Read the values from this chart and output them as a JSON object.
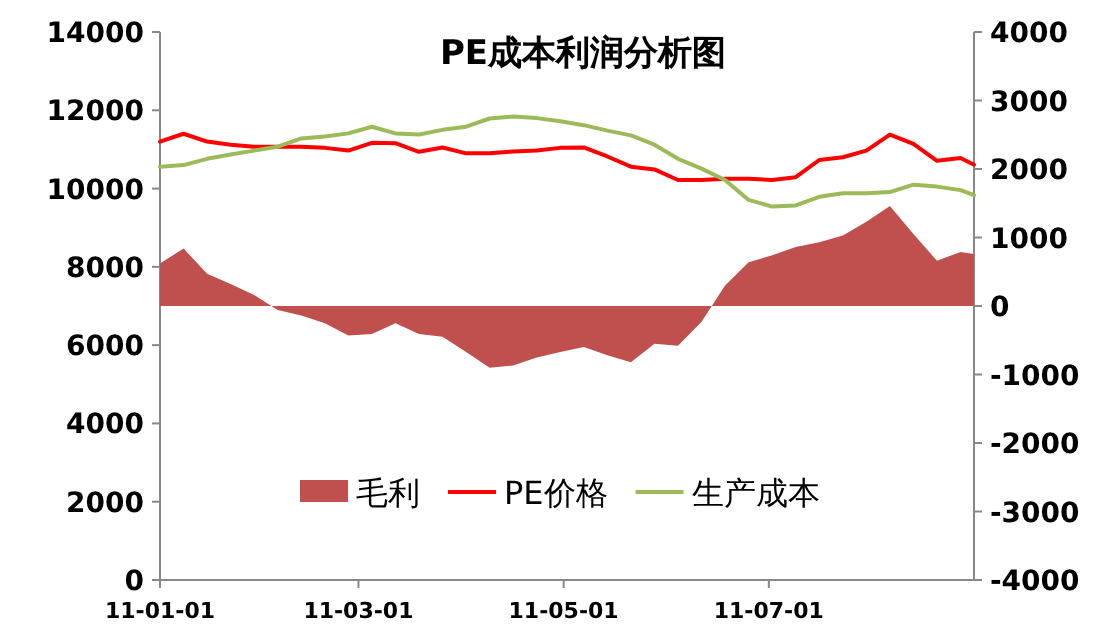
{
  "chart_data": {
    "type": "line",
    "title": "PE成本利润分析图",
    "x": [
      "--01-01",
      "--01-08",
      "--01-15",
      "--01-22",
      "--01-29",
      "--02-05",
      "--02-12",
      "--02-19",
      "--02-26",
      "--03-05",
      "--03-12",
      "--03-19",
      "--03-26",
      "--04-02",
      "--04-09",
      "--04-16",
      "--04-23",
      "--04-30",
      "--05-07",
      "--05-14",
      "--05-21",
      "--05-28",
      "--06-04",
      "--06-11",
      "--06-18",
      "--06-25",
      "--07-02",
      "--07-09",
      "--07-16",
      "--07-23",
      "--07-30",
      "--08-06",
      "--08-13",
      "--08-20",
      "--08-27",
      "--08-31"
    ],
    "series": [
      {
        "name": "毛利",
        "type": "area",
        "axis": "y2",
        "color": "#c0504d",
        "values": [
          620,
          840,
          470,
          320,
          160,
          -60,
          -140,
          -250,
          -430,
          -410,
          -250,
          -410,
          -450,
          -670,
          -900,
          -870,
          -750,
          -670,
          -600,
          -720,
          -820,
          -550,
          -580,
          -230,
          300,
          640,
          740,
          860,
          930,
          1030,
          1230,
          1460,
          1050,
          660,
          790,
          760
        ]
      },
      {
        "name": "PE价格",
        "type": "line",
        "color": "#ff0000",
        "values": [
          11200,
          11400,
          11200,
          11120,
          11070,
          11070,
          11070,
          11040,
          10970,
          11170,
          11160,
          10940,
          11050,
          10900,
          10900,
          10950,
          10970,
          11040,
          11050,
          10820,
          10560,
          10490,
          10220,
          10220,
          10250,
          10250,
          10220,
          10290,
          10730,
          10800,
          10970,
          11380,
          11140,
          10710,
          10780,
          10610
        ]
      },
      {
        "name": "生产成本",
        "type": "line",
        "color": "#9bbb59",
        "values": [
          10560,
          10600,
          10760,
          10870,
          10970,
          11070,
          11280,
          11330,
          11410,
          11580,
          11410,
          11380,
          11500,
          11580,
          11790,
          11840,
          11800,
          11720,
          11620,
          11480,
          11360,
          11120,
          10760,
          10510,
          10220,
          9710,
          9540,
          9570,
          9790,
          9880,
          9880,
          9910,
          10100,
          10050,
          9960,
          9830
        ]
      }
    ],
    "xlim": [
      "--01-01",
      "--08-31"
    ],
    "xticks": [
      {
        "value": "--01-01",
        "label": "11-01-01"
      },
      {
        "value": "--03-01",
        "label": "11-03-01"
      },
      {
        "value": "--05-01",
        "label": "11-05-01"
      },
      {
        "value": "--07-01",
        "label": "11-07-01"
      }
    ],
    "ylim": [
      0,
      14000
    ],
    "yticks": [
      0,
      2000,
      4000,
      6000,
      8000,
      10000,
      12000,
      14000
    ],
    "y2lim": [
      -4000,
      4000
    ],
    "y2ticks": [
      -4000,
      -3000,
      -2000,
      -1000,
      0,
      1000,
      2000,
      3000,
      4000
    ],
    "legend": "bottom"
  }
}
